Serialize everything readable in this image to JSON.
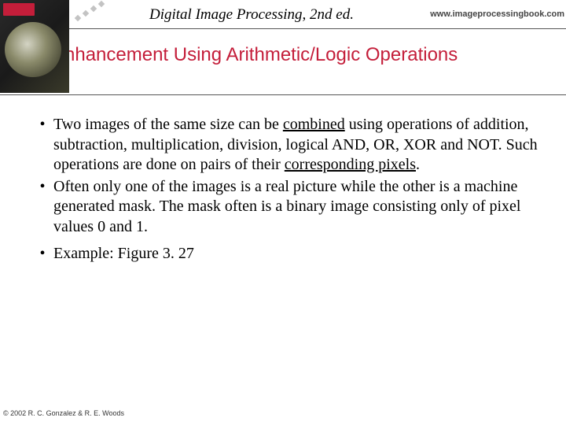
{
  "header": {
    "title": "Digital Image Processing, 2nd ed.",
    "url": "www.imageprocessingbook.com"
  },
  "slide": {
    "title": "Enhancement Using Arithmetic/Logic Operations"
  },
  "bullets": {
    "b1_pre": "Two images of the same size can be ",
    "b1_underlined1": "combined",
    "b1_mid": " using operations of addition, subtraction, multiplication, division, logical AND, OR, XOR and NOT.  Such operations are done on pairs of their ",
    "b1_underlined2": "corresponding pixels",
    "b1_post": ".",
    "b2": "Often only one of the images is a real picture while the other is a machine generated mask.  The mask often is a binary image consisting only of pixel values 0 and 1.",
    "b3": "Example: Figure 3. 27"
  },
  "footer": {
    "copyright": "© 2002 R. C. Gonzalez & R. E. Woods"
  },
  "colors": {
    "title_color": "#c41e3a",
    "rule_color": "#555555",
    "background": "#ffffff"
  },
  "typography": {
    "header_title_fontsize": 19,
    "slide_title_fontsize": 24,
    "body_fontsize": 20,
    "footer_fontsize": 9
  }
}
